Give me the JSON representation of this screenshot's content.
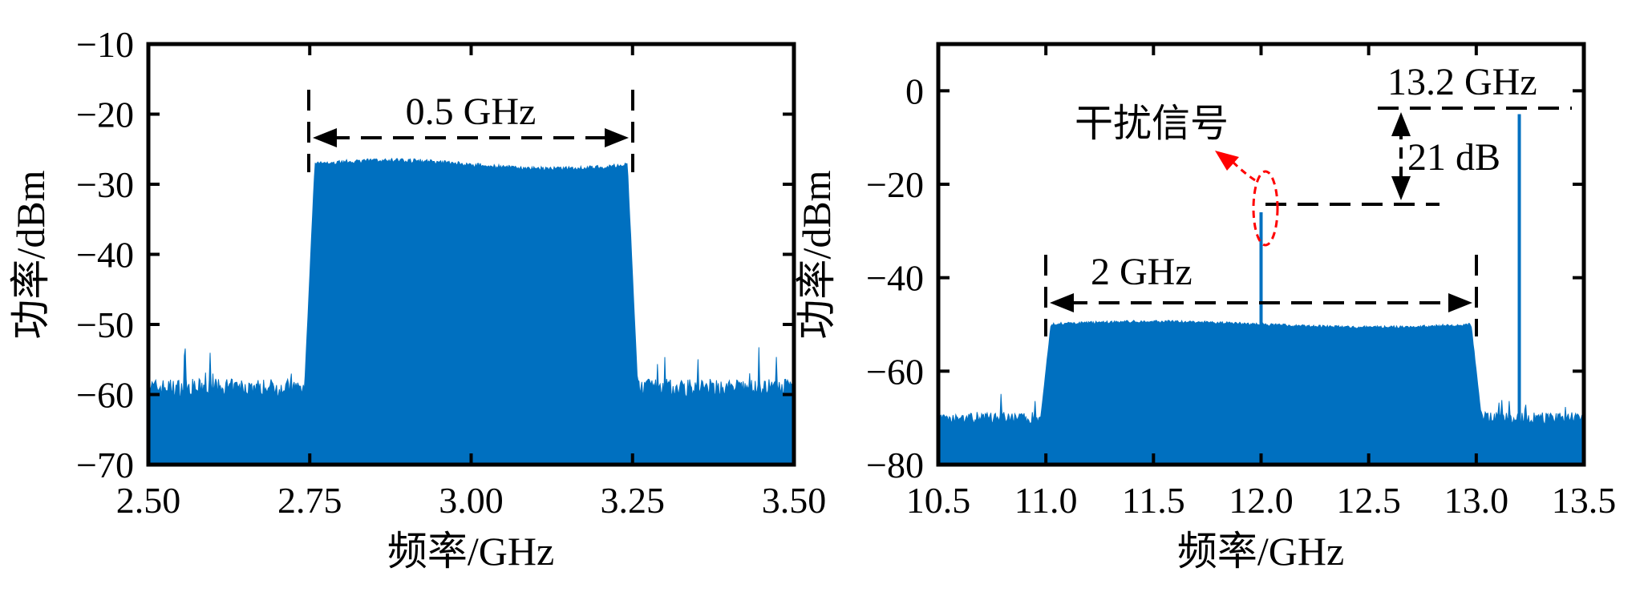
{
  "chart_data": [
    {
      "type": "area",
      "xlabel": "频率/GHz",
      "ylabel": "功率/dBm",
      "xlim": [
        2.5,
        3.5
      ],
      "ylim": [
        -70,
        -10
      ],
      "xticks": [
        "2.50",
        "2.75",
        "3.00",
        "3.25",
        "3.50"
      ],
      "xtick_values": [
        2.5,
        2.75,
        3.0,
        3.25,
        3.5
      ],
      "yticks": [
        "−10",
        "−20",
        "−30",
        "−40",
        "−50",
        "−60",
        "−70"
      ],
      "ytick_values": [
        -10,
        -20,
        -30,
        -40,
        -50,
        -60,
        -70
      ],
      "series_color": "#0070c0",
      "noise_floor_dbm": -59,
      "band": {
        "start": 2.75,
        "end": 3.25,
        "level_dbm": -27.2
      },
      "annotations": {
        "bandwidth_label": "0.5 GHz",
        "bandwidth_from": 2.75,
        "bandwidth_to": 3.25,
        "arrow_level_dbm": -23.5
      }
    },
    {
      "type": "area",
      "xlabel": "频率/GHz",
      "ylabel": "功率/dBm",
      "xlim": [
        10.5,
        13.5
      ],
      "ylim": [
        -80,
        10
      ],
      "xticks": [
        "10.5",
        "11.0",
        "11.5",
        "12.0",
        "12.5",
        "13.0",
        "13.5"
      ],
      "xtick_values": [
        10.5,
        11.0,
        11.5,
        12.0,
        12.5,
        13.0,
        13.5
      ],
      "yticks": [
        "0",
        "−20",
        "−40",
        "−60",
        "−80"
      ],
      "ytick_values": [
        0,
        -20,
        -40,
        -60,
        -80
      ],
      "series_color": "#0070c0",
      "noise_floor_dbm": -70,
      "band": {
        "start": 11.0,
        "end": 13.0,
        "level_dbm": -50
      },
      "spurs": [
        {
          "x": 12.0,
          "level_dbm": -26
        },
        {
          "x": 13.2,
          "level_dbm": -5
        }
      ],
      "annotations": {
        "bandwidth_label": "2 GHz",
        "bandwidth_from": 11.0,
        "bandwidth_to": 13.0,
        "arrow_level_dbm": -46.5,
        "interference_label": "干扰信号",
        "tone_label": "13.2 GHz",
        "difference_label": "21 dB",
        "difference_top_dbm": -5,
        "difference_bottom_dbm": -25.5,
        "highlight_color": "#ff0000"
      }
    }
  ]
}
